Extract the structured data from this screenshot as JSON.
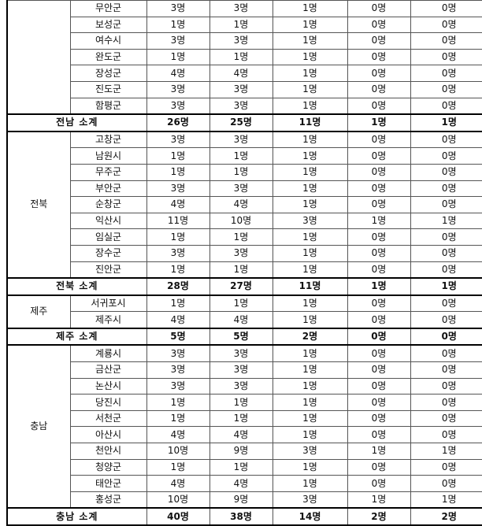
{
  "groups": [
    {
      "region": "",
      "rows": [
        {
          "name": "무안군",
          "values": [
            "3명",
            "3명",
            "1명",
            "0명",
            "0명"
          ]
        },
        {
          "name": "보성군",
          "values": [
            "1명",
            "1명",
            "1명",
            "0명",
            "0명"
          ]
        },
        {
          "name": "여수시",
          "values": [
            "3명",
            "3명",
            "1명",
            "0명",
            "0명"
          ]
        },
        {
          "name": "완도군",
          "values": [
            "1명",
            "1명",
            "1명",
            "0명",
            "0명"
          ]
        },
        {
          "name": "장성군",
          "values": [
            "4명",
            "4명",
            "1명",
            "0명",
            "0명"
          ]
        },
        {
          "name": "진도군",
          "values": [
            "3명",
            "3명",
            "1명",
            "0명",
            "0명"
          ]
        },
        {
          "name": "함평군",
          "values": [
            "3명",
            "3명",
            "1명",
            "0명",
            "0명"
          ]
        }
      ],
      "subtotal": {
        "label": "전남 소계",
        "values": [
          "26명",
          "25명",
          "11명",
          "1명",
          "1명"
        ]
      }
    },
    {
      "region": "전북",
      "rows": [
        {
          "name": "고창군",
          "values": [
            "3명",
            "3명",
            "1명",
            "0명",
            "0명"
          ]
        },
        {
          "name": "남원시",
          "values": [
            "1명",
            "1명",
            "1명",
            "0명",
            "0명"
          ]
        },
        {
          "name": "무주군",
          "values": [
            "1명",
            "1명",
            "1명",
            "0명",
            "0명"
          ]
        },
        {
          "name": "부안군",
          "values": [
            "3명",
            "3명",
            "1명",
            "0명",
            "0명"
          ]
        },
        {
          "name": "순창군",
          "values": [
            "4명",
            "4명",
            "1명",
            "0명",
            "0명"
          ]
        },
        {
          "name": "익산시",
          "values": [
            "11명",
            "10명",
            "3명",
            "1명",
            "1명"
          ]
        },
        {
          "name": "임실군",
          "values": [
            "1명",
            "1명",
            "1명",
            "0명",
            "0명"
          ]
        },
        {
          "name": "장수군",
          "values": [
            "3명",
            "3명",
            "1명",
            "0명",
            "0명"
          ]
        },
        {
          "name": "진안군",
          "values": [
            "1명",
            "1명",
            "1명",
            "0명",
            "0명"
          ]
        }
      ],
      "subtotal": {
        "label": "전북 소계",
        "values": [
          "28명",
          "27명",
          "11명",
          "1명",
          "1명"
        ]
      }
    },
    {
      "region": "제주",
      "rows": [
        {
          "name": "서귀포시",
          "values": [
            "1명",
            "1명",
            "1명",
            "0명",
            "0명"
          ]
        },
        {
          "name": "제주시",
          "values": [
            "4명",
            "4명",
            "1명",
            "0명",
            "0명"
          ]
        }
      ],
      "subtotal": {
        "label": "제주 소계",
        "values": [
          "5명",
          "5명",
          "2명",
          "0명",
          "0명"
        ]
      }
    },
    {
      "region": "충남",
      "rows": [
        {
          "name": "계룡시",
          "values": [
            "3명",
            "3명",
            "1명",
            "0명",
            "0명"
          ]
        },
        {
          "name": "금산군",
          "values": [
            "3명",
            "3명",
            "1명",
            "0명",
            "0명"
          ]
        },
        {
          "name": "논산시",
          "values": [
            "3명",
            "3명",
            "1명",
            "0명",
            "0명"
          ]
        },
        {
          "name": "당진시",
          "values": [
            "1명",
            "1명",
            "1명",
            "0명",
            "0명"
          ]
        },
        {
          "name": "서천군",
          "values": [
            "1명",
            "1명",
            "1명",
            "0명",
            "0명"
          ]
        },
        {
          "name": "아산시",
          "values": [
            "4명",
            "4명",
            "1명",
            "0명",
            "0명"
          ]
        },
        {
          "name": "천안시",
          "values": [
            "10명",
            "9명",
            "3명",
            "1명",
            "1명"
          ]
        },
        {
          "name": "청양군",
          "values": [
            "1명",
            "1명",
            "1명",
            "0명",
            "0명"
          ]
        },
        {
          "name": "태안군",
          "values": [
            "4명",
            "4명",
            "1명",
            "0명",
            "0명"
          ]
        },
        {
          "name": "홍성군",
          "values": [
            "10명",
            "9명",
            "3명",
            "1명",
            "1명"
          ]
        }
      ],
      "subtotal": {
        "label": "충남 소계",
        "values": [
          "40명",
          "38명",
          "14명",
          "2명",
          "2명"
        ]
      }
    }
  ]
}
